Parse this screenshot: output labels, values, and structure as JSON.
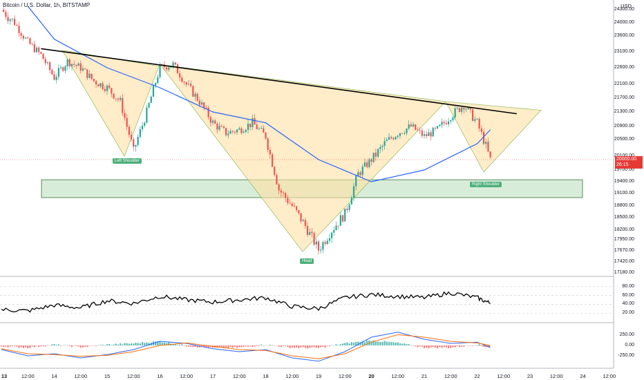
{
  "header": {
    "title": "Bitcoin / U.S. Dollar, 1h, BITSTAMP",
    "currency": "USD"
  },
  "price_axis": {
    "labels": [
      "24300.00",
      "24000.00",
      "23600.00",
      "23100.00",
      "22600.00",
      "22100.00",
      "21700.00",
      "21300.00",
      "20900.00",
      "20500.00",
      "20100.00",
      "19700.00",
      "19400.00",
      "19100.00",
      "18800.00",
      "18500.00",
      "18200.00",
      "17950.00",
      "17670.00",
      "17420.00",
      "17180.00"
    ],
    "last_price": "20000.00",
    "countdown": "26:15"
  },
  "rsi_axis": {
    "labels": [
      "80.00",
      "60.00",
      "40.00",
      "20.00"
    ]
  },
  "macd_axis": {
    "labels": [
      "250.00",
      "0.00",
      "-250.00"
    ]
  },
  "time_axis": {
    "labels": [
      {
        "text": "13",
        "bold": true
      },
      {
        "text": "12:00",
        "bold": false
      },
      {
        "text": "14",
        "bold": false
      },
      {
        "text": "12:00",
        "bold": false
      },
      {
        "text": "15",
        "bold": false
      },
      {
        "text": "12:00",
        "bold": false
      },
      {
        "text": "16",
        "bold": false
      },
      {
        "text": "12:00",
        "bold": false
      },
      {
        "text": "17",
        "bold": false
      },
      {
        "text": "12:00",
        "bold": false
      },
      {
        "text": "18",
        "bold": false
      },
      {
        "text": "12:00",
        "bold": false
      },
      {
        "text": "19",
        "bold": false
      },
      {
        "text": "12:00",
        "bold": false
      },
      {
        "text": "20",
        "bold": true
      },
      {
        "text": "12:00",
        "bold": false
      },
      {
        "text": "21",
        "bold": false
      },
      {
        "text": "12:00",
        "bold": false
      },
      {
        "text": "22",
        "bold": false
      },
      {
        "text": "12:00",
        "bold": false
      },
      {
        "text": "23",
        "bold": false
      },
      {
        "text": "12:00",
        "bold": false
      },
      {
        "text": "24",
        "bold": false
      },
      {
        "text": "12:00",
        "bold": false
      }
    ]
  },
  "annotations": {
    "left_shoulder": "Left Shoulder",
    "head": "Head",
    "right_shoulder": "Right Shoulder"
  },
  "colors": {
    "up": "#26a69a",
    "down": "#ef5350",
    "ma": "#2962ff",
    "triangle_fill": "#ffe0a3",
    "zone_fill": "#c8e6c9",
    "zone_border": "#1b5e20",
    "trendline": "#000000",
    "rsi": "#000000",
    "macd": "#2962ff",
    "signal": "#ff6d00"
  },
  "chart_data": {
    "type": "line",
    "symbol": "Bitcoin / U.S. Dollar",
    "interval": "1h",
    "exchange": "BITSTAMP",
    "price_path": {
      "x": [
        "13 00:00",
        "13 06:00",
        "13 12:00",
        "13 18:00",
        "14 00:00",
        "14 06:00",
        "14 12:00",
        "14 18:00",
        "15 00:00",
        "15 06:00",
        "15 12:00",
        "15 18:00",
        "16 00:00",
        "16 06:00",
        "16 12:00",
        "16 18:00",
        "17 00:00",
        "17 06:00",
        "17 12:00",
        "17 18:00",
        "18 00:00",
        "18 06:00",
        "18 12:00",
        "18 18:00",
        "19 00:00",
        "19 06:00",
        "19 12:00",
        "19 18:00",
        "20 00:00",
        "20 06:00",
        "20 12:00",
        "20 18:00",
        "21 00:00",
        "21 06:00",
        "21 12:00",
        "21 18:00",
        "22 00:00",
        "22 06:00"
      ],
      "y": [
        24300,
        24000,
        23400,
        23000,
        22300,
        22800,
        22600,
        22200,
        22000,
        21600,
        20200,
        21300,
        22600,
        22700,
        22100,
        21600,
        21000,
        20700,
        20800,
        21000,
        20600,
        19200,
        18800,
        18300,
        17700,
        18200,
        18600,
        19600,
        20000,
        20400,
        20700,
        20900,
        20600,
        20800,
        21200,
        21500,
        21000,
        20000
      ]
    },
    "moving_average": {
      "x": [
        "13 12:00",
        "14 00:00",
        "15 00:00",
        "16 00:00",
        "17 00:00",
        "18 00:00",
        "19 00:00",
        "20 00:00",
        "21 00:00",
        "22 00:00",
        "22 06:00"
      ],
      "y": [
        24400,
        23500,
        22600,
        22000,
        21300,
        21000,
        20000,
        19400,
        19700,
        20400,
        20800
      ]
    },
    "neckline": {
      "x": [
        "13 18:00",
        "22 18:00"
      ],
      "y": [
        23200,
        21250
      ]
    },
    "support_zone": {
      "y_range": [
        19000,
        19450
      ]
    },
    "rsi": {
      "ylim": [
        0,
        100
      ],
      "x": [
        "13 00:00",
        "13 12:00",
        "14 00:00",
        "14 12:00",
        "15 00:00",
        "15 12:00",
        "16 00:00",
        "16 12:00",
        "17 00:00",
        "17 12:00",
        "18 00:00",
        "18 12:00",
        "19 00:00",
        "19 12:00",
        "20 00:00",
        "20 12:00",
        "21 00:00",
        "21 12:00",
        "22 00:00",
        "22 06:00"
      ],
      "y": [
        28,
        25,
        38,
        32,
        48,
        42,
        58,
        50,
        45,
        50,
        55,
        35,
        30,
        55,
        62,
        58,
        55,
        66,
        55,
        42
      ]
    },
    "macd": {
      "x": [
        "13 00:00",
        "13 12:00",
        "14 00:00",
        "14 12:00",
        "15 00:00",
        "15 12:00",
        "16 00:00",
        "16 12:00",
        "17 00:00",
        "17 12:00",
        "18 00:00",
        "18 12:00",
        "19 00:00",
        "19 12:00",
        "20 00:00",
        "20 12:00",
        "21 00:00",
        "21 12:00",
        "22 00:00",
        "22 06:00"
      ],
      "macd": [
        -100,
        -250,
        -200,
        -300,
        -220,
        -100,
        100,
        50,
        -80,
        -150,
        -100,
        -300,
        -380,
        -150,
        200,
        320,
        150,
        50,
        80,
        -50
      ],
      "signal": [
        -80,
        -200,
        -220,
        -260,
        -240,
        -150,
        0,
        60,
        -20,
        -100,
        -120,
        -250,
        -320,
        -200,
        80,
        260,
        200,
        100,
        60,
        0
      ],
      "histogram": [
        -20,
        -50,
        20,
        -40,
        20,
        50,
        100,
        -10,
        -60,
        -50,
        20,
        -50,
        -60,
        50,
        120,
        60,
        -50,
        -50,
        20,
        -50
      ]
    }
  }
}
